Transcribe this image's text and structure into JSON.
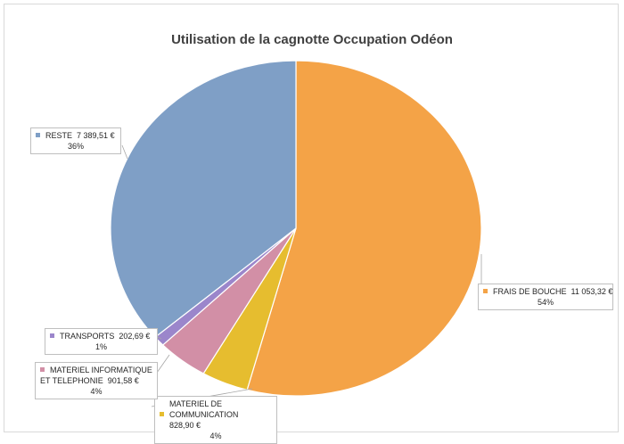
{
  "chart_data": {
    "type": "pie",
    "title": "Utilisation de la cagnotte Occupation Odéon",
    "slices": [
      {
        "label": "FRAIS DE BOUCHE",
        "amount": "11 053,32 €",
        "value": 11053.32,
        "percent": "54%",
        "color": "#f4a347"
      },
      {
        "label": "MATERIEL DE COMMUNICATION",
        "amount": "828,90 €",
        "value": 828.9,
        "percent": "4%",
        "color": "#e6bd2f"
      },
      {
        "label": "MATERIEL INFORMATIQUE ET TELEPHONIE",
        "amount": "901,58 €",
        "value": 901.58,
        "percent": "4%",
        "color": "#d28fa6"
      },
      {
        "label": "TRANSPORTS",
        "amount": "202,69 €",
        "value": 202.69,
        "percent": "1%",
        "color": "#9b86cb"
      },
      {
        "label": "RESTE",
        "amount": "7 389,51 €",
        "value": 7389.51,
        "percent": "36%",
        "color": "#7f9fc6"
      }
    ],
    "legend": "none"
  }
}
